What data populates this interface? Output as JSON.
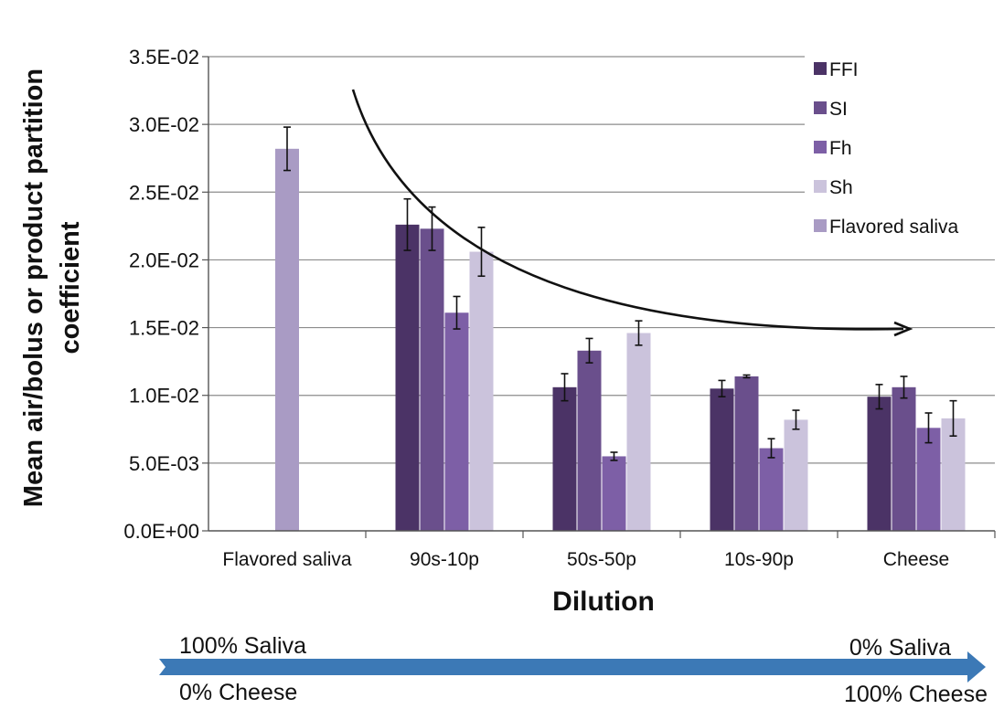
{
  "chart_data": {
    "type": "bar",
    "title": "",
    "xlabel": "Dilution",
    "ylabel": "Mean air/bolus or product partition coefficient",
    "ylim": [
      0,
      0.035
    ],
    "yticks": [
      0,
      0.005,
      0.01,
      0.015,
      0.02,
      0.025,
      0.03,
      0.035
    ],
    "ytick_labels": [
      "0.0E+00",
      "5.0E-03",
      "1.0E-02",
      "1.5E-02",
      "2.0E-02",
      "2.5E-02",
      "3.0E-02",
      "3.5E-02"
    ],
    "categories": [
      "Flavored saliva",
      "90s-10p",
      "50s-50p",
      "10s-90p",
      "Cheese"
    ],
    "grid": true,
    "legend_position": "top-right",
    "series": [
      {
        "name": "FFI",
        "color": "#4b3366",
        "values": [
          null,
          0.0226,
          0.0106,
          0.0105,
          0.0099
        ],
        "errors": [
          null,
          0.0019,
          0.001,
          0.0006,
          0.0009
        ]
      },
      {
        "name": "SI",
        "color": "#6a4f8c",
        "values": [
          null,
          0.0223,
          0.0133,
          0.0114,
          0.0106
        ],
        "errors": [
          null,
          0.0016,
          0.0009,
          0.0001,
          0.0008
        ]
      },
      {
        "name": "Fh",
        "color": "#7d5fa6",
        "values": [
          null,
          0.0161,
          0.0055,
          0.0061,
          0.0076
        ],
        "errors": [
          null,
          0.0012,
          0.0003,
          0.0007,
          0.0011
        ]
      },
      {
        "name": "Sh",
        "color": "#cbc3dc",
        "values": [
          null,
          0.0206,
          0.0146,
          0.0082,
          0.0083
        ],
        "errors": [
          null,
          0.0018,
          0.0009,
          0.0007,
          0.0013
        ]
      },
      {
        "name": "Flavored saliva",
        "color": "#a99bc4",
        "values": [
          0.0282,
          null,
          null,
          null,
          null
        ],
        "errors": [
          0.0016,
          null,
          null,
          null,
          null
        ]
      }
    ],
    "trend_arrow": true,
    "dilution_arrow": {
      "color": "#3c79b6",
      "left_top": "100% Saliva",
      "left_bottom": "0% Cheese",
      "right_top": "0% Saliva",
      "right_bottom": "100% Cheese"
    }
  }
}
